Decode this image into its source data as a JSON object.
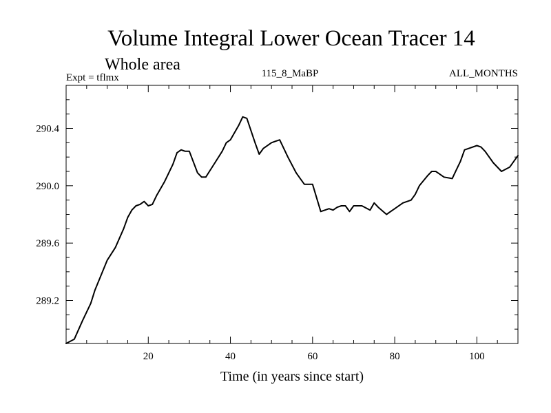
{
  "chart_data": {
    "type": "line",
    "title": "Volume Integral Lower Ocean Tracer 14",
    "subtitle": "Whole area",
    "left_label": "Expt = tflmx",
    "center_label": "115_8_MaBP",
    "right_label": "ALL_MONTHS",
    "xlabel": "Time (in years since start)",
    "ylabel": "",
    "xlim": [
      0,
      110
    ],
    "ylim": [
      288.9,
      290.7
    ],
    "xticks": [
      20,
      40,
      60,
      80,
      100
    ],
    "xtick_labels": [
      "20",
      "40",
      "60",
      "80",
      "100"
    ],
    "yticks": [
      289.2,
      289.6,
      290.0,
      290.4
    ],
    "ytick_labels": [
      "289.2",
      "289.6",
      "290.0",
      "290.4"
    ],
    "grid": false,
    "series": [
      {
        "name": "Volume Integral Lower Ocean Tracer 14",
        "color": "#000000",
        "x": [
          0,
          2,
          4,
          6,
          7,
          8,
          10,
          12,
          14,
          15,
          16,
          17,
          18,
          19,
          20,
          21,
          22,
          24,
          26,
          27,
          28,
          29,
          30,
          32,
          33,
          34,
          36,
          38,
          39,
          40,
          41,
          42,
          43,
          44,
          46,
          47,
          48,
          50,
          51,
          52,
          54,
          56,
          57,
          58,
          59,
          60,
          62,
          64,
          65,
          66,
          67,
          68,
          69,
          70,
          72,
          74,
          75,
          76,
          78,
          79,
          80,
          82,
          84,
          85,
          86,
          88,
          89,
          90,
          92,
          94,
          95,
          96,
          97,
          98,
          100,
          101,
          102,
          104,
          106,
          108,
          110
        ],
        "values": [
          288.9,
          288.93,
          289.06,
          289.18,
          289.27,
          289.34,
          289.48,
          289.57,
          289.7,
          289.78,
          289.83,
          289.86,
          289.87,
          289.89,
          289.86,
          289.87,
          289.93,
          290.03,
          290.15,
          290.23,
          290.25,
          290.24,
          290.24,
          290.09,
          290.06,
          290.06,
          290.15,
          290.24,
          290.3,
          290.32,
          290.37,
          290.42,
          290.48,
          290.47,
          290.3,
          290.22,
          290.26,
          290.3,
          290.31,
          290.32,
          290.2,
          290.09,
          290.05,
          290.01,
          290.01,
          290.01,
          289.82,
          289.84,
          289.83,
          289.85,
          289.86,
          289.86,
          289.82,
          289.86,
          289.86,
          289.83,
          289.88,
          289.85,
          289.8,
          289.82,
          289.84,
          289.88,
          289.9,
          289.94,
          290.0,
          290.07,
          290.1,
          290.1,
          290.06,
          290.05,
          290.11,
          290.17,
          290.25,
          290.26,
          290.28,
          290.27,
          290.24,
          290.16,
          290.1,
          290.13,
          290.21
        ]
      }
    ]
  }
}
